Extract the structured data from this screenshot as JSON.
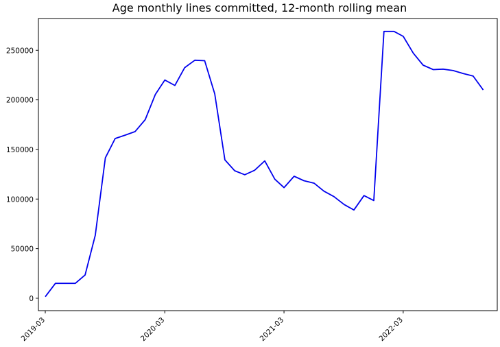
{
  "chart_data": {
    "type": "line",
    "title": "Age monthly lines committed, 12-month rolling mean",
    "xlabel": "",
    "ylabel": "",
    "grid": false,
    "legend": "none",
    "color": "#0000ee",
    "x_ticks": [
      "2019-03",
      "2020-03",
      "2021-03",
      "2022-03"
    ],
    "y_ticks": [
      0,
      50000,
      100000,
      150000,
      200000,
      250000
    ],
    "y_tick_labels": [
      "0",
      "50000",
      "100000",
      "150000",
      "200000",
      "250000"
    ],
    "xlim": [
      "2019-02-08",
      "2022-12-14"
    ],
    "ylim": [
      -12500,
      282000
    ],
    "series": [
      {
        "x": [
          "2019-03",
          "2019-04",
          "2019-05",
          "2019-06",
          "2019-07",
          "2019-08",
          "2019-09",
          "2019-10",
          "2019-11",
          "2019-12",
          "2020-01",
          "2020-02",
          "2020-03",
          "2020-04",
          "2020-05",
          "2020-06",
          "2020-07",
          "2020-08",
          "2020-09",
          "2020-10",
          "2020-11",
          "2020-12",
          "2021-01",
          "2021-02",
          "2021-03",
          "2021-04",
          "2021-05",
          "2021-06",
          "2021-07",
          "2021-08",
          "2021-09",
          "2021-10",
          "2021-11",
          "2021-12",
          "2022-01",
          "2022-02",
          "2022-03",
          "2022-04",
          "2022-05",
          "2022-06",
          "2022-07",
          "2022-08",
          "2022-09",
          "2022-10",
          "2022-11"
        ],
        "values": [
          1500,
          15000,
          15000,
          15000,
          23500,
          63500,
          141500,
          161000,
          164500,
          168000,
          180000,
          205500,
          220000,
          214500,
          232500,
          240000,
          239500,
          206000,
          139500,
          128500,
          124500,
          129000,
          138500,
          120000,
          111500,
          123000,
          118500,
          116000,
          108000,
          102500,
          94500,
          89000,
          103500,
          98500,
          269000,
          269000,
          264000,
          247000,
          235000,
          230500,
          231000,
          229500,
          226500,
          224000,
          210000
        ]
      }
    ]
  }
}
